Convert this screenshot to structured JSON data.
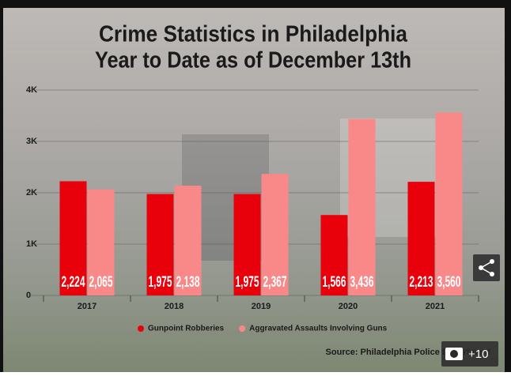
{
  "chart_data": {
    "type": "bar",
    "title": "Crime Statistics in Philadelphia",
    "subtitle": "Year to Date as of December 13th",
    "categories": [
      "2017",
      "2018",
      "2019",
      "2020",
      "2021"
    ],
    "series": [
      {
        "name": "Gunpoint Robberies",
        "color": "#e8000b",
        "values": [
          2224,
          1975,
          1975,
          1566,
          2213
        ],
        "value_labels": [
          "2,224",
          "1,975",
          "1,975",
          "1,566",
          "2,213"
        ]
      },
      {
        "name": "Aggravated Assaults Involving Guns",
        "color": "#f98888",
        "values": [
          2065,
          2138,
          2367,
          3436,
          3560
        ],
        "value_labels": [
          "2,065",
          "2,138",
          "2,367",
          "3,436",
          "3,560"
        ]
      }
    ],
    "ylim": [
      0,
      4000
    ],
    "yticks": [
      0,
      {
        "value": 1000,
        "label": "1K"
      },
      {
        "value": 2000,
        "label": "2K"
      },
      {
        "value": 3000,
        "label": "3K"
      },
      {
        "value": 4000,
        "label": "4K"
      }
    ],
    "grid": true,
    "source": "Source: Philadelphia Police Department"
  },
  "overlay": {
    "photo_count": "+10"
  }
}
